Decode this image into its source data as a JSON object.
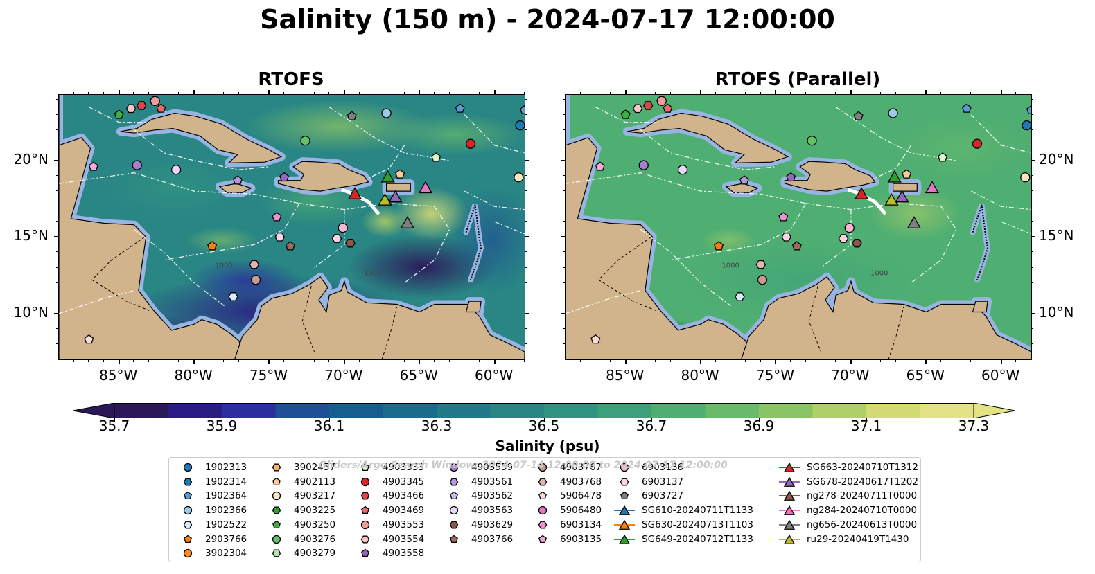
{
  "title": "Salinity (150 m) - 2024-07-17 12:00:00",
  "panels": [
    {
      "title": "RTOFS",
      "variant": "rtofs"
    },
    {
      "title": "RTOFS (Parallel)",
      "variant": "parallel"
    }
  ],
  "lon_ticks": [
    "85°W",
    "80°W",
    "75°W",
    "70°W",
    "65°W",
    "60°W"
  ],
  "lon_values": [
    -85,
    -80,
    -75,
    -70,
    -65,
    -60
  ],
  "lat_ticks": [
    "20°N",
    "15°N",
    "10°N"
  ],
  "lat_values": [
    20,
    15,
    10
  ],
  "extent": {
    "lon_min": -89,
    "lon_max": -58,
    "lat_min": 7,
    "lat_max": 24.3
  },
  "contour_labels": [
    "1000",
    "1000"
  ],
  "colorbar": {
    "label": "Salinity (psu)",
    "tick_labels": [
      "35.7",
      "35.9",
      "36.1",
      "36.3",
      "36.5",
      "36.7",
      "36.9",
      "37.1",
      "37.3"
    ],
    "min": 35.7,
    "max": 37.3,
    "extend": "both",
    "colors": [
      "#2a1859",
      "#2b1c83",
      "#2a2e9e",
      "#1f4f94",
      "#175e8e",
      "#1b6c8a",
      "#227987",
      "#298684",
      "#309381",
      "#3ca17a",
      "#4fae72",
      "#6aba6b",
      "#8bc464",
      "#b0cf66",
      "#d3da73",
      "#e3e386"
    ]
  },
  "land_color": "#d2b48c",
  "shelf_color": "#98b4e0",
  "watermark": "Gliders/Argo Search Window: 2024-07-14 12:00:00 to 2024-07-17 12:00:00",
  "legend": {
    "columns": [
      [
        {
          "label": "1902313",
          "marker": "circle",
          "color": "#1f77b4"
        },
        {
          "label": "1902314",
          "marker": "hexagon",
          "color": "#1f77b4"
        },
        {
          "label": "1902364",
          "marker": "pentagon",
          "color": "#5b9bd5"
        },
        {
          "label": "1902366",
          "marker": "circle",
          "color": "#9ec9e8"
        },
        {
          "label": "1902522",
          "marker": "hexagon",
          "color": "#d6ecfa"
        },
        {
          "label": "2903766",
          "marker": "pentagon",
          "color": "#ff7f0e"
        },
        {
          "label": "3902304",
          "marker": "circle",
          "color": "#ff8c1a"
        }
      ],
      [
        {
          "label": "3902457",
          "marker": "hexagon",
          "color": "#ffb266"
        },
        {
          "label": "4902113",
          "marker": "pentagon",
          "color": "#ffcc99"
        },
        {
          "label": "4903217",
          "marker": "circle",
          "color": "#ffe5c2"
        },
        {
          "label": "4903225",
          "marker": "hexagon",
          "color": "#2ca02c"
        },
        {
          "label": "4903250",
          "marker": "pentagon",
          "color": "#3cb043"
        },
        {
          "label": "4903276",
          "marker": "circle",
          "color": "#66c266"
        },
        {
          "label": "4903279",
          "marker": "hexagon",
          "color": "#b8e6a8"
        }
      ],
      [
        {
          "label": "4903333",
          "marker": "pentagon",
          "color": "#d9f5c9"
        },
        {
          "label": "4903345",
          "marker": "circle",
          "color": "#d62728"
        },
        {
          "label": "4903466",
          "marker": "hexagon",
          "color": "#e04545"
        },
        {
          "label": "4903469",
          "marker": "pentagon",
          "color": "#e86a6a"
        },
        {
          "label": "4903553",
          "marker": "circle",
          "color": "#f29b9b"
        },
        {
          "label": "4903554",
          "marker": "hexagon",
          "color": "#f9c7c7"
        },
        {
          "label": "4903558",
          "marker": "pentagon",
          "color": "#9467bd"
        }
      ],
      [
        {
          "label": "4903559",
          "marker": "circle",
          "color": "#a57fd0"
        },
        {
          "label": "4903561",
          "marker": "hexagon",
          "color": "#b497dc"
        },
        {
          "label": "4903562",
          "marker": "pentagon",
          "color": "#cdb8ec"
        },
        {
          "label": "4903563",
          "marker": "circle",
          "color": "#e6d8f7"
        },
        {
          "label": "4903629",
          "marker": "hexagon",
          "color": "#8c564b"
        },
        {
          "label": "4903766",
          "marker": "pentagon",
          "color": "#9c6a5f"
        }
      ],
      [
        {
          "label": "4903767",
          "marker": "circle",
          "color": "#c49c94"
        },
        {
          "label": "4903768",
          "marker": "hexagon",
          "color": "#e0b7ae"
        },
        {
          "label": "5906478",
          "marker": "pentagon",
          "color": "#f7dcd5"
        },
        {
          "label": "5906480",
          "marker": "circle",
          "color": "#e377c2"
        },
        {
          "label": "6903134",
          "marker": "hexagon",
          "color": "#ec90d0"
        },
        {
          "label": "6903135",
          "marker": "pentagon",
          "color": "#f4a9dc"
        }
      ],
      [
        {
          "label": "6903136",
          "marker": "circle",
          "color": "#f7b6d2"
        },
        {
          "label": "6903137",
          "marker": "hexagon",
          "color": "#fbd5e6"
        },
        {
          "label": "6903727",
          "marker": "pentagon",
          "color": "#7f7f7f"
        },
        {
          "label": "SG610-20240711T1133",
          "marker": "triangle-line",
          "color": "#1f77b4"
        },
        {
          "label": "SG630-20240713T1103",
          "marker": "triangle-line",
          "color": "#ff7f0e"
        },
        {
          "label": "SG649-20240712T1133",
          "marker": "triangle-line",
          "color": "#2ca02c"
        }
      ],
      [
        {
          "label": "SG663-20240710T1312",
          "marker": "triangle-line",
          "color": "#d62728"
        },
        {
          "label": "SG678-20240617T1202",
          "marker": "triangle-line",
          "color": "#9467bd"
        },
        {
          "label": "ng278-20240711T0000",
          "marker": "triangle-line",
          "color": "#8c564b"
        },
        {
          "label": "ng284-20240710T0000",
          "marker": "triangle-line",
          "color": "#e377c2"
        },
        {
          "label": "ng656-20240613T0000",
          "marker": "triangle-line",
          "color": "#7f7f7f"
        },
        {
          "label": "ru29-20240419T1430",
          "marker": "triangle-line",
          "color": "#bcbd22"
        }
      ]
    ]
  },
  "map_markers": [
    {
      "lon": -85.0,
      "lat": 23.0,
      "marker": "pentagon",
      "color": "#3cb043"
    },
    {
      "lon": -84.2,
      "lat": 23.4,
      "marker": "hexagon",
      "color": "#f9c7c7"
    },
    {
      "lon": -83.5,
      "lat": 23.6,
      "marker": "hexagon",
      "color": "#e04545"
    },
    {
      "lon": -82.6,
      "lat": 23.9,
      "marker": "circle",
      "color": "#f29b9b"
    },
    {
      "lon": -82.2,
      "lat": 23.4,
      "marker": "pentagon",
      "color": "#e86a6a"
    },
    {
      "lon": -69.5,
      "lat": 22.9,
      "marker": "pentagon",
      "color": "#7f7f7f"
    },
    {
      "lon": -67.2,
      "lat": 23.1,
      "marker": "circle",
      "color": "#9ec9e8"
    },
    {
      "lon": -62.3,
      "lat": 23.4,
      "marker": "pentagon",
      "color": "#5b9bd5"
    },
    {
      "lon": -58.0,
      "lat": 23.3,
      "marker": "pentagon",
      "color": "#5b9bd5"
    },
    {
      "lon": -58.3,
      "lat": 22.3,
      "marker": "circle",
      "color": "#1f77b4"
    },
    {
      "lon": -72.6,
      "lat": 21.3,
      "marker": "circle",
      "color": "#66c266"
    },
    {
      "lon": -61.6,
      "lat": 21.1,
      "marker": "circle",
      "color": "#d62728"
    },
    {
      "lon": -63.9,
      "lat": 20.2,
      "marker": "pentagon",
      "color": "#d9f5c9"
    },
    {
      "lon": -86.7,
      "lat": 19.6,
      "marker": "pentagon",
      "color": "#f4a9dc"
    },
    {
      "lon": -83.8,
      "lat": 19.7,
      "marker": "circle",
      "color": "#a57fd0"
    },
    {
      "lon": -81.2,
      "lat": 19.4,
      "marker": "circle",
      "color": "#e6d8f7"
    },
    {
      "lon": -58.4,
      "lat": 18.9,
      "marker": "circle",
      "color": "#ffe5c2"
    },
    {
      "lon": -74.0,
      "lat": 18.9,
      "marker": "pentagon",
      "color": "#9467bd"
    },
    {
      "lon": -77.1,
      "lat": 18.7,
      "marker": "pentagon",
      "color": "#b497dc"
    },
    {
      "lon": -66.3,
      "lat": 19.1,
      "marker": "pentagon",
      "color": "#ffcc99"
    },
    {
      "lon": -74.5,
      "lat": 16.3,
      "marker": "pentagon",
      "color": "#ec90d0"
    },
    {
      "lon": -70.1,
      "lat": 15.6,
      "marker": "circle",
      "color": "#f7b6d2"
    },
    {
      "lon": -74.3,
      "lat": 15.0,
      "marker": "hexagon",
      "color": "#fbd5e6"
    },
    {
      "lon": -70.5,
      "lat": 14.9,
      "marker": "hexagon",
      "color": "#fbd5e6"
    },
    {
      "lon": -73.6,
      "lat": 14.4,
      "marker": "pentagon",
      "color": "#9c6a5f"
    },
    {
      "lon": -69.6,
      "lat": 14.6,
      "marker": "hexagon",
      "color": "#8c564b"
    },
    {
      "lon": -78.8,
      "lat": 14.4,
      "marker": "pentagon",
      "color": "#ff7f0e"
    },
    {
      "lon": -76.0,
      "lat": 13.2,
      "marker": "hexagon",
      "color": "#e0b7ae"
    },
    {
      "lon": -75.9,
      "lat": 12.2,
      "marker": "circle",
      "color": "#c49c94"
    },
    {
      "lon": -77.4,
      "lat": 11.1,
      "marker": "hexagon",
      "color": "#d6ecfa"
    },
    {
      "lon": -87.0,
      "lat": 8.3,
      "marker": "pentagon",
      "color": "#f7dcd5"
    },
    {
      "lon": -69.3,
      "lat": 17.8,
      "marker": "triangle",
      "color": "#d62728"
    },
    {
      "lon": -67.1,
      "lat": 18.9,
      "marker": "triangle",
      "color": "#2ca02c"
    },
    {
      "lon": -67.3,
      "lat": 17.4,
      "marker": "triangle",
      "color": "#bcbd22"
    },
    {
      "lon": -66.6,
      "lat": 17.6,
      "marker": "triangle",
      "color": "#9467bd"
    },
    {
      "lon": -64.6,
      "lat": 18.2,
      "marker": "triangle",
      "color": "#e377c2"
    },
    {
      "lon": -65.8,
      "lat": 15.9,
      "marker": "triangle",
      "color": "#7f7f7f"
    }
  ]
}
